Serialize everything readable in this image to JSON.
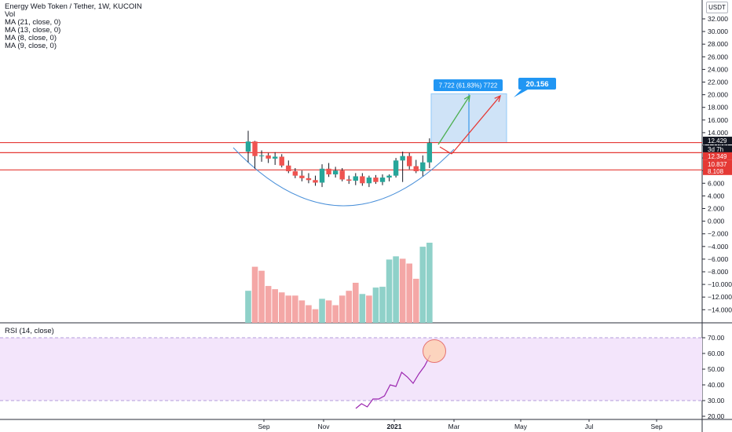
{
  "header": {
    "title": "Energy Web Token / Tether, 1W, KUCOIN",
    "indicators": [
      "Vol",
      "MA (21, close, 0)",
      "MA (13, close, 0)",
      "MA (8, close, 0)",
      "MA (9, close, 0)"
    ],
    "currency": "USDT"
  },
  "rsi_legend": "RSI (14, close)",
  "colors": {
    "up": "#26a69a",
    "down": "#ef5350",
    "vol_up": "#8fd1c9",
    "vol_down": "#f4a7a6",
    "hline": "#e53935",
    "arc": "#4a90d9",
    "rsi_line": "#9c27b0",
    "rsi_band": "#f3e5fb",
    "green_arrow": "#4caf50",
    "red_arrow": "#e53935",
    "box_fill": "#cfe3f7",
    "callout": "#2196f3"
  },
  "chart_data": [
    {
      "type": "candlestick",
      "title": "Energy Web Token / Tether, 1W, KUCOIN",
      "price_axis": [
        "32.000",
        "30.000",
        "28.000",
        "26.000",
        "24.000",
        "22.000",
        "20.000",
        "18.000",
        "16.000",
        "14.000",
        "12.000",
        "10.000",
        "8.000",
        "6.000",
        "4.000",
        "2.000",
        "0.000",
        "−2.000",
        "−4.000",
        "−6.000",
        "−8.000",
        "−10.000",
        "−12.000",
        "−14.000"
      ],
      "time_axis": [
        "Sep",
        "Nov",
        "2021",
        "Mar",
        "May",
        "Jul",
        "Sep"
      ],
      "price_tags": [
        "12.429",
        "3d 7h",
        "12.349",
        "10.837",
        "8.108"
      ],
      "horizontal_lines": [
        12.43,
        10.84,
        8.11
      ],
      "candles": [
        {
          "o": 11.0,
          "h": 14.3,
          "l": 9.3,
          "c": 12.6
        },
        {
          "o": 12.6,
          "h": 12.7,
          "l": 8.3,
          "c": 10.3
        },
        {
          "o": 10.3,
          "h": 11.2,
          "l": 9.4,
          "c": 10.4
        },
        {
          "o": 10.4,
          "h": 10.8,
          "l": 9.2,
          "c": 9.9
        },
        {
          "o": 9.9,
          "h": 10.9,
          "l": 8.9,
          "c": 10.2
        },
        {
          "o": 10.2,
          "h": 10.6,
          "l": 8.5,
          "c": 8.8
        },
        {
          "o": 8.8,
          "h": 9.6,
          "l": 7.6,
          "c": 7.9
        },
        {
          "o": 7.9,
          "h": 8.4,
          "l": 6.8,
          "c": 7.2
        },
        {
          "o": 7.2,
          "h": 8.0,
          "l": 6.3,
          "c": 6.8
        },
        {
          "o": 6.8,
          "h": 7.6,
          "l": 6.0,
          "c": 6.5
        },
        {
          "o": 6.5,
          "h": 7.2,
          "l": 5.6,
          "c": 6.1
        },
        {
          "o": 6.1,
          "h": 9.0,
          "l": 5.4,
          "c": 8.3
        },
        {
          "o": 8.3,
          "h": 9.2,
          "l": 7.0,
          "c": 7.4
        },
        {
          "o": 7.4,
          "h": 8.6,
          "l": 6.9,
          "c": 8.0
        },
        {
          "o": 8.0,
          "h": 8.4,
          "l": 6.3,
          "c": 6.6
        },
        {
          "o": 6.6,
          "h": 7.2,
          "l": 5.9,
          "c": 6.4
        },
        {
          "o": 6.4,
          "h": 7.6,
          "l": 5.7,
          "c": 7.1
        },
        {
          "o": 7.1,
          "h": 7.6,
          "l": 5.6,
          "c": 6.0
        },
        {
          "o": 6.0,
          "h": 7.2,
          "l": 5.4,
          "c": 6.9
        },
        {
          "o": 6.9,
          "h": 7.3,
          "l": 5.9,
          "c": 6.2
        },
        {
          "o": 6.2,
          "h": 7.4,
          "l": 5.7,
          "c": 6.9
        },
        {
          "o": 6.9,
          "h": 7.4,
          "l": 6.3,
          "c": 7.2
        },
        {
          "o": 7.2,
          "h": 10.0,
          "l": 6.9,
          "c": 9.6
        },
        {
          "o": 9.6,
          "h": 11.0,
          "l": 6.2,
          "c": 10.3
        },
        {
          "o": 10.3,
          "h": 10.8,
          "l": 8.2,
          "c": 8.7
        },
        {
          "o": 8.7,
          "h": 9.7,
          "l": 7.6,
          "c": 7.9
        },
        {
          "o": 7.9,
          "h": 10.4,
          "l": 7.1,
          "c": 9.3
        },
        {
          "o": 9.3,
          "h": 13.1,
          "l": 8.4,
          "c": 12.4
        }
      ],
      "volume": [
        {
          "v": 0.4,
          "up": true
        },
        {
          "v": 0.7,
          "up": false
        },
        {
          "v": 0.65,
          "up": false
        },
        {
          "v": 0.46,
          "up": false
        },
        {
          "v": 0.42,
          "up": false
        },
        {
          "v": 0.38,
          "up": false
        },
        {
          "v": 0.34,
          "up": false
        },
        {
          "v": 0.34,
          "up": false
        },
        {
          "v": 0.28,
          "up": false
        },
        {
          "v": 0.22,
          "up": false
        },
        {
          "v": 0.17,
          "up": false
        },
        {
          "v": 0.3,
          "up": true
        },
        {
          "v": 0.28,
          "up": false
        },
        {
          "v": 0.22,
          "up": false
        },
        {
          "v": 0.34,
          "up": false
        },
        {
          "v": 0.4,
          "up": false
        },
        {
          "v": 0.5,
          "up": false
        },
        {
          "v": 0.36,
          "up": true
        },
        {
          "v": 0.34,
          "up": false
        },
        {
          "v": 0.44,
          "up": true
        },
        {
          "v": 0.45,
          "up": true
        },
        {
          "v": 0.79,
          "up": true
        },
        {
          "v": 0.83,
          "up": true
        },
        {
          "v": 0.8,
          "up": false
        },
        {
          "v": 0.74,
          "up": false
        },
        {
          "v": 0.55,
          "up": false
        },
        {
          "v": 0.95,
          "up": true
        },
        {
          "v": 1.0,
          "up": true
        }
      ],
      "projection": {
        "box_label": "7.722 (61.83%) 7722",
        "target_label": "20.156",
        "box_low": 12.43,
        "box_high": 20.15
      }
    },
    {
      "type": "line",
      "title": "RSI (14, close)",
      "y_axis": [
        "70.00",
        "60.00",
        "50.00",
        "40.00",
        "30.00",
        "20.00"
      ],
      "bands": [
        30,
        70
      ],
      "values": [
        25,
        28,
        26,
        31,
        31,
        33,
        40,
        39,
        48,
        45,
        41,
        47,
        52,
        59
      ],
      "highlight_circle": true
    }
  ]
}
